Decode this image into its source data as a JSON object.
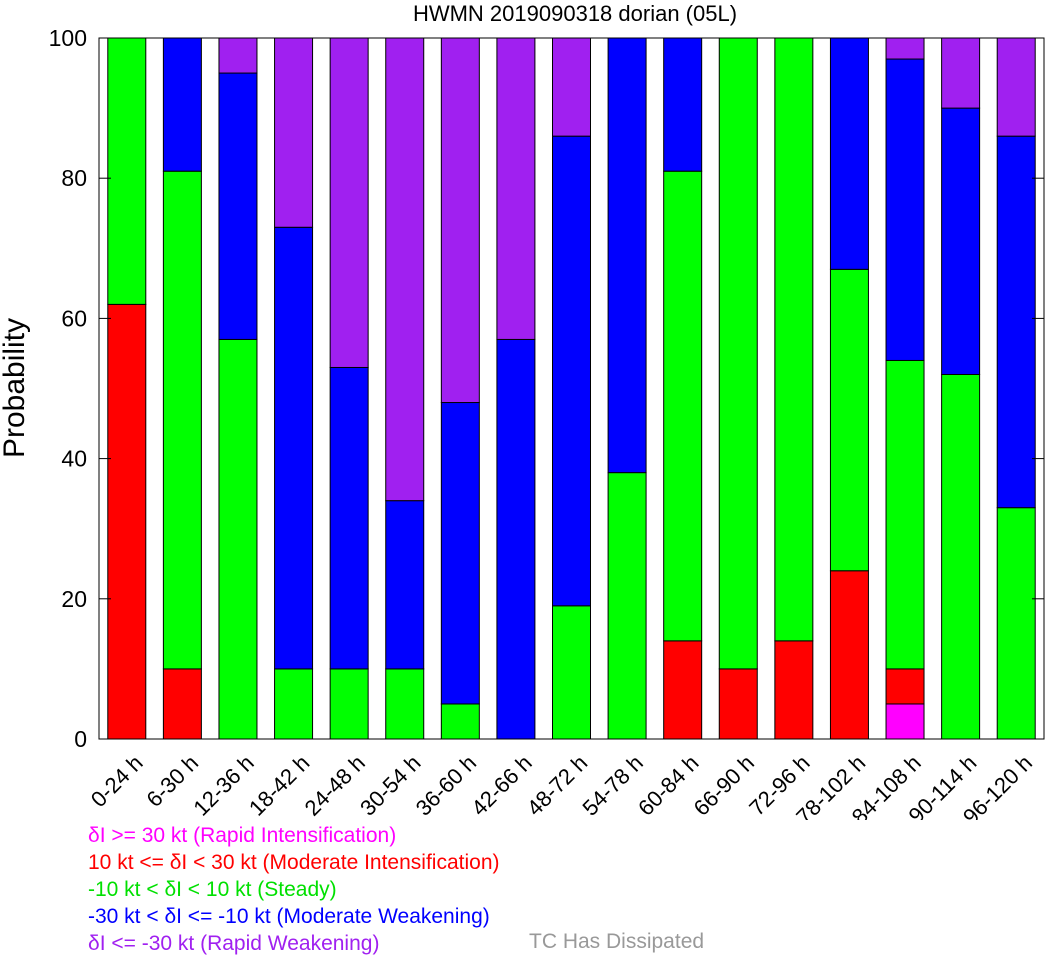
{
  "chart_data": {
    "type": "bar",
    "stacked": true,
    "title": "HWMN 2019090318 dorian (05L)",
    "xlabel": "",
    "ylabel": "Probability",
    "ylim": [
      0,
      100
    ],
    "yticks": [
      0,
      20,
      40,
      60,
      80,
      100
    ],
    "grid": false,
    "categories": [
      "0-24 h",
      "6-30 h",
      "12-36 h",
      "18-42 h",
      "24-48 h",
      "30-54 h",
      "36-60 h",
      "42-66 h",
      "48-72 h",
      "54-78 h",
      "60-84 h",
      "66-90 h",
      "72-96 h",
      "78-102 h",
      "84-108 h",
      "90-114 h",
      "96-120 h"
    ],
    "series": [
      {
        "name": "δI >= 30 kt (Rapid Intensification)",
        "color": "#ff00ff",
        "values": [
          0,
          0,
          0,
          0,
          0,
          0,
          0,
          0,
          0,
          0,
          0,
          0,
          0,
          0,
          5,
          0,
          0
        ]
      },
      {
        "name": "10 kt <= δI < 30 kt (Moderate Intensification)",
        "color": "#ff0000",
        "values": [
          62,
          10,
          0,
          0,
          0,
          0,
          0,
          0,
          0,
          0,
          14,
          10,
          14,
          24,
          5,
          0,
          0
        ]
      },
      {
        "name": "-10 kt < δI < 10 kt (Steady)",
        "color": "#00ff00",
        "values": [
          38,
          71,
          57,
          10,
          10,
          10,
          5,
          0,
          19,
          38,
          67,
          90,
          86,
          43,
          44,
          52,
          33
        ]
      },
      {
        "name": "-30 kt < δI <= -10 kt (Moderate Weakening)",
        "color": "#0000ff",
        "values": [
          0,
          19,
          38,
          63,
          43,
          24,
          43,
          57,
          67,
          62,
          19,
          0,
          0,
          33,
          43,
          38,
          53
        ]
      },
      {
        "name": "δI <= -30 kt (Rapid Weakening)",
        "color": "#a020f0",
        "values": [
          0,
          0,
          5,
          27,
          47,
          66,
          52,
          43,
          14,
          0,
          0,
          0,
          0,
          0,
          3,
          10,
          14
        ]
      }
    ]
  },
  "legend": {
    "items": [
      {
        "label": "δI >= 30 kt (Rapid Intensification)",
        "color": "#ff00ff"
      },
      {
        "label": "10 kt <= δI < 30 kt (Moderate Intensification)",
        "color": "#ff0000"
      },
      {
        "label": "-10 kt < δI < 10 kt (Steady)",
        "color": "#00e000"
      },
      {
        "label": "-30 kt < δI <= -10 kt (Moderate Weakening)",
        "color": "#0000ff"
      },
      {
        "label": "δI <= -30 kt (Rapid Weakening)",
        "color": "#a020f0"
      }
    ],
    "dissipated": "TC Has Dissipated"
  }
}
